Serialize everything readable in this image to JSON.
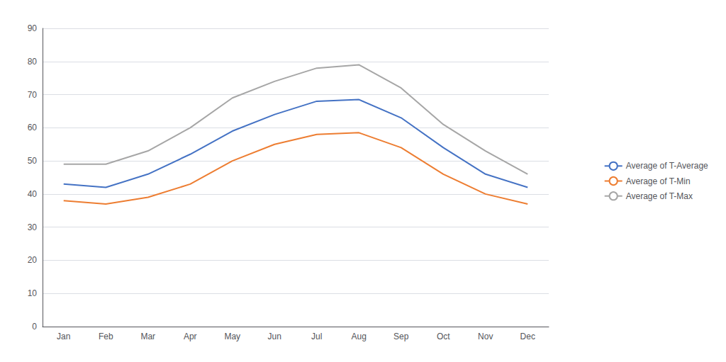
{
  "chart_data": {
    "type": "line",
    "categories": [
      "Jan",
      "Feb",
      "Mar",
      "Apr",
      "May",
      "Jun",
      "Jul",
      "Aug",
      "Sep",
      "Oct",
      "Nov",
      "Dec"
    ],
    "series": [
      {
        "name": "Average of T-Average",
        "color": "#4472C4",
        "values": [
          43,
          42,
          46,
          52,
          59,
          64,
          68,
          68.5,
          63,
          54,
          46,
          42
        ]
      },
      {
        "name": "Average of T-Min",
        "color": "#ED7D31",
        "values": [
          38,
          37,
          39,
          43,
          50,
          55,
          58,
          58.5,
          54,
          46,
          40,
          37
        ]
      },
      {
        "name": "Average of T-Max",
        "color": "#A6A6A6",
        "values": [
          49,
          49,
          53,
          60,
          69,
          74,
          78,
          79,
          72,
          61,
          53,
          46
        ]
      }
    ],
    "ylim": [
      0,
      90
    ],
    "yticks": [
      0,
      10,
      20,
      30,
      40,
      50,
      60,
      70,
      80,
      90
    ],
    "grid": true,
    "legend": "right"
  }
}
